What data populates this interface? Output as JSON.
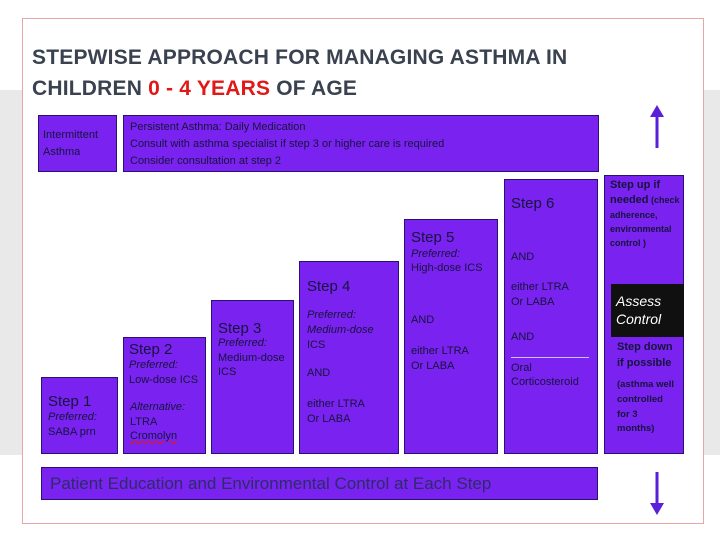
{
  "title": {
    "line1": "STEPWISE APPROACH  FOR MANAGING ASTHMA IN",
    "line2_part1": "CHILDREN ",
    "line2_red": "0 - 4 YEARS",
    "line2_part3": " OF AGE"
  },
  "intermittent": {
    "line1": "Intermittent",
    "line2": "Asthma"
  },
  "persistent": {
    "line1": "Persistent  Asthma:  Daily  Medication",
    "line2": "Consult  with asthma  specialist  if step 3  or higher  care is  required",
    "line3": "Consider  consultation  at step 2"
  },
  "steps": {
    "s1": {
      "head": "Step 1",
      "l1": "Preferred:",
      "l2": "SABA prn"
    },
    "s2": {
      "head": "Step 2",
      "l1": "Preferred:",
      "l2": "Low-dose ICS",
      "l3": "Alternative:",
      "l4": "LTRA",
      "l5": "Cromolyn"
    },
    "s3": {
      "head": "Step 3",
      "l1": "Preferred:",
      "l2": "Medium-dose",
      "l3": "ICS"
    },
    "s4": {
      "head": "Step 4",
      "l1": "Preferred:",
      "l2": "Medium-dose",
      "l3": "ICS",
      "l4": "AND",
      "l5": "either LTRA",
      "l6": "Or LABA"
    },
    "s5": {
      "head": "Step 5",
      "l1": "Preferred:",
      "l2": "High-dose ICS",
      "l3": "AND",
      "l4": "either LTRA",
      "l5": "Or LABA"
    },
    "s6": {
      "head": "Step 6",
      "l1": "AND",
      "l2": "either LTRA",
      "l3": "Or LABA",
      "l4": "AND",
      "l5": "Oral",
      "l6": "Corticosteroid"
    }
  },
  "side": {
    "up1": "Step up if",
    "up2a": "needed",
    "up2b": " (check",
    "up3": "adherence,",
    "up4": "environmental",
    "up5": "control )",
    "assess1": "Assess",
    "assess2": "Control",
    "down1": "Step down",
    "down2": "if possible",
    "down3": "(asthma well",
    "down4": "controlled",
    "down5": "for 3",
    "down6": "months)"
  },
  "footer": {
    "text": "Patient  Education  and  Environmental  Control  at  Each  Step"
  },
  "colors": {
    "box": "#7a22f0",
    "title_red": "#e01818",
    "title_dark": "#3a4250",
    "arrow": "#5a1fd8",
    "assess_bg": "#101010"
  },
  "icons": {
    "up": "arrow-up-icon",
    "down": "arrow-down-icon"
  }
}
